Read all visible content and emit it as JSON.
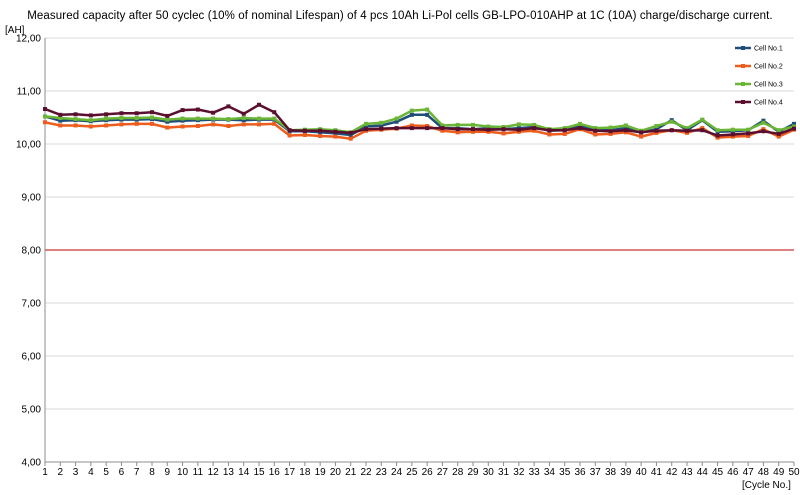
{
  "chart_data": {
    "type": "line",
    "title": "Measured  capacity after  50 cyclec (10% of nominal Lifespan)  of 4 pcs 10Ah Li-Pol cells GB-LPO-010AHP  at 1C (10A) charge/discharge  current.",
    "ylabel": "[AH]",
    "xlabel": "[Cycle No.]",
    "ylim": [
      4,
      12
    ],
    "yticks": [
      "4,00",
      "5,00",
      "6,00",
      "7,00",
      "8,00",
      "9,00",
      "10,00",
      "11,00",
      "12,00"
    ],
    "reference_line": {
      "value": 8.0,
      "color": "#c00000"
    },
    "legend_position": "top-right",
    "grid": "horizontal",
    "x": [
      1,
      2,
      3,
      4,
      5,
      6,
      7,
      8,
      9,
      10,
      11,
      12,
      13,
      14,
      15,
      16,
      17,
      18,
      19,
      20,
      21,
      22,
      23,
      24,
      25,
      26,
      27,
      28,
      29,
      30,
      31,
      32,
      33,
      34,
      35,
      36,
      37,
      38,
      39,
      40,
      41,
      42,
      43,
      44,
      45,
      46,
      47,
      48,
      49,
      50
    ],
    "series": [
      {
        "name": "Cell No.1",
        "color": "#1f4e79",
        "values": [
          10.52,
          10.44,
          10.45,
          10.43,
          10.45,
          10.46,
          10.46,
          10.47,
          10.42,
          10.44,
          10.45,
          10.46,
          10.46,
          10.45,
          10.46,
          10.46,
          10.24,
          10.24,
          10.22,
          10.2,
          10.17,
          10.33,
          10.35,
          10.42,
          10.55,
          10.55,
          10.3,
          10.3,
          10.28,
          10.3,
          10.28,
          10.3,
          10.32,
          10.25,
          10.26,
          10.34,
          10.26,
          10.26,
          10.3,
          10.22,
          10.28,
          10.45,
          10.26,
          10.45,
          10.23,
          10.24,
          10.26,
          10.44,
          10.23,
          10.38
        ]
      },
      {
        "name": "Cell No.2",
        "color": "#ed5d1e",
        "values": [
          10.41,
          10.35,
          10.35,
          10.33,
          10.35,
          10.37,
          10.38,
          10.38,
          10.31,
          10.33,
          10.34,
          10.37,
          10.34,
          10.37,
          10.37,
          10.38,
          10.16,
          10.17,
          10.15,
          10.14,
          10.1,
          10.25,
          10.27,
          10.29,
          10.35,
          10.34,
          10.25,
          10.22,
          10.23,
          10.23,
          10.2,
          10.23,
          10.25,
          10.18,
          10.19,
          10.28,
          10.18,
          10.19,
          10.22,
          10.14,
          10.21,
          10.26,
          10.21,
          10.3,
          10.12,
          10.14,
          10.15,
          10.28,
          10.14,
          10.27
        ]
      },
      {
        "name": "Cell No.3",
        "color": "#6ab536",
        "values": [
          10.52,
          10.49,
          10.47,
          10.45,
          10.48,
          10.49,
          10.49,
          10.5,
          10.46,
          10.48,
          10.48,
          10.48,
          10.47,
          10.49,
          10.48,
          10.48,
          10.26,
          10.27,
          10.28,
          10.26,
          10.22,
          10.38,
          10.4,
          10.48,
          10.63,
          10.65,
          10.35,
          10.36,
          10.36,
          10.33,
          10.32,
          10.37,
          10.36,
          10.28,
          10.3,
          10.38,
          10.3,
          10.31,
          10.35,
          10.25,
          10.34,
          10.42,
          10.3,
          10.46,
          10.26,
          10.27,
          10.27,
          10.4,
          10.26,
          10.33
        ]
      },
      {
        "name": "Cell No.4",
        "color": "#5b0f2e",
        "values": [
          10.66,
          10.55,
          10.56,
          10.54,
          10.56,
          10.58,
          10.58,
          10.6,
          10.53,
          10.64,
          10.65,
          10.59,
          10.71,
          10.57,
          10.74,
          10.6,
          10.26,
          10.25,
          10.25,
          10.23,
          10.21,
          10.28,
          10.29,
          10.3,
          10.3,
          10.3,
          10.3,
          10.28,
          10.28,
          10.27,
          10.28,
          10.27,
          10.3,
          10.26,
          10.26,
          10.3,
          10.25,
          10.24,
          10.26,
          10.22,
          10.25,
          10.26,
          10.25,
          10.26,
          10.16,
          10.18,
          10.2,
          10.24,
          10.19,
          10.29
        ]
      }
    ]
  }
}
